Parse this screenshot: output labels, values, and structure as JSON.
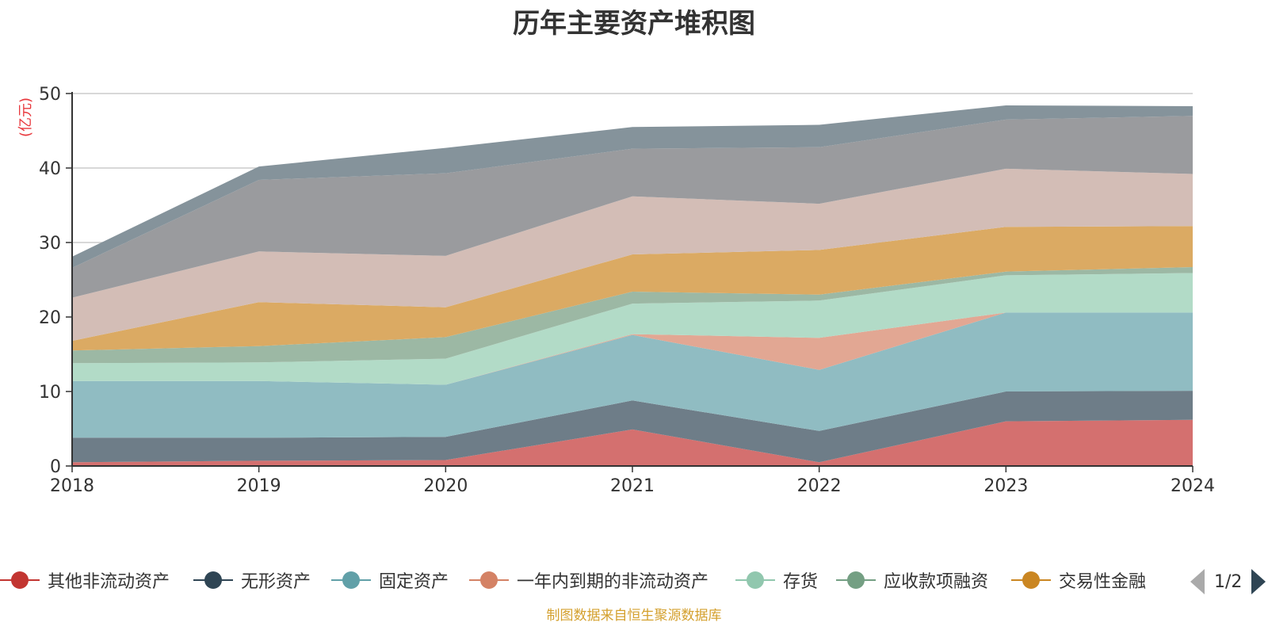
{
  "title": "历年主要资产堆积图",
  "footer": "制图数据来自恒生聚源数据库",
  "legend_page": "1/2",
  "chart_data": {
    "type": "area",
    "stacked": true,
    "title": "历年主要资产堆积图",
    "ylabel": "(亿元)",
    "xlabel": "",
    "x": [
      "2018",
      "2019",
      "2020",
      "2021",
      "2022",
      "2023",
      "2024"
    ],
    "ylim": [
      0,
      50
    ],
    "yticks": [
      0,
      10,
      20,
      30,
      40,
      50
    ],
    "grid": true,
    "legend_position": "bottom",
    "legend_visible": [
      "其他非流动资产",
      "无形资产",
      "固定资产",
      "一年内到期的非流动资产",
      "存货",
      "应收款项融资",
      "交易性金融"
    ],
    "series": [
      {
        "name": "其他非流动资产",
        "color": "#c23531",
        "legend_color": "#c23531",
        "area_color": "#d4706f",
        "values": [
          0.5,
          0.7,
          0.8,
          4.9,
          0.5,
          6.0,
          6.2
        ]
      },
      {
        "name": "无形资产",
        "color": "#2f4554",
        "legend_color": "#2f4554",
        "area_color": "#6e7d88",
        "values": [
          3.3,
          3.1,
          3.1,
          3.9,
          4.2,
          4.0,
          3.9
        ]
      },
      {
        "name": "固定资产",
        "color": "#61a0a8",
        "legend_color": "#61a0a8",
        "area_color": "#90bcc2",
        "values": [
          7.6,
          7.6,
          7.0,
          8.8,
          8.2,
          10.6,
          10.5
        ]
      },
      {
        "name": "一年内到期的非流动资产",
        "color": "#d48265",
        "legend_color": "#d48265",
        "area_color": "#e2a793",
        "values": [
          0.0,
          0.0,
          0.0,
          0.1,
          4.3,
          0.0,
          0.0
        ]
      },
      {
        "name": "存货",
        "color": "#91c7ae",
        "legend_color": "#91c7ae",
        "area_color": "#b2dbc7",
        "values": [
          2.4,
          2.5,
          3.5,
          4.1,
          5.0,
          5.0,
          5.3
        ]
      },
      {
        "name": "应收款项融资",
        "color": "#749f83",
        "legend_color": "#749f83",
        "area_color": "#9cb8a4",
        "values": [
          1.7,
          2.2,
          2.9,
          1.6,
          0.8,
          0.5,
          0.8
        ]
      },
      {
        "name": "交易性金融资产",
        "color": "#ca8622",
        "legend_color": "#ca8622",
        "area_color": "#dbaa63",
        "values": [
          1.3,
          5.9,
          4.0,
          5.0,
          6.0,
          6.0,
          5.5
        ]
      },
      {
        "name": "",
        "color": "#bda29a",
        "area_color": "#d3bdb6",
        "values": [
          5.8,
          6.8,
          6.9,
          7.8,
          6.2,
          7.8,
          7.0
        ]
      },
      {
        "name": "",
        "color": "#6e7074",
        "area_color": "#9a9b9e",
        "values": [
          4.0,
          9.6,
          11.1,
          6.4,
          7.6,
          6.6,
          7.8
        ]
      },
      {
        "name": "",
        "color": "#546570",
        "area_color": "#85939b",
        "values": [
          1.5,
          1.8,
          3.4,
          2.9,
          3.0,
          1.9,
          1.3
        ]
      }
    ]
  }
}
